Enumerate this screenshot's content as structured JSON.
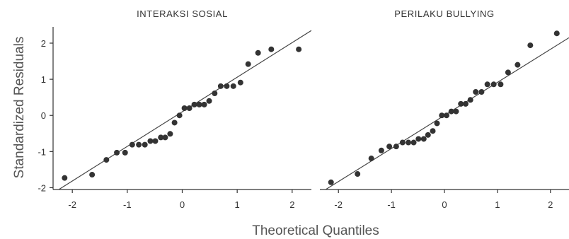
{
  "chart_data": {
    "type": "scatter",
    "xlabel": "Theoretical Quantiles",
    "ylabel": "Standardized Residuals",
    "xlim": [
      -2.35,
      2.35
    ],
    "ylim": [
      -2.05,
      2.45
    ],
    "x_ticks": [
      "-2",
      "-1",
      "0",
      "1",
      "2"
    ],
    "y_ticks": [
      "-2",
      "-1",
      "0",
      "1",
      "2"
    ],
    "panels": [
      {
        "title": "INTERAKSI SOSIAL",
        "reference_line": [
          [
            -2.35,
            -2.15
          ],
          [
            2.35,
            2.35
          ]
        ],
        "points": [
          [
            -2.14,
            -1.73
          ],
          [
            -1.64,
            -1.64
          ],
          [
            -1.38,
            -1.23
          ],
          [
            -1.19,
            -1.03
          ],
          [
            -1.04,
            -1.03
          ],
          [
            -0.91,
            -0.81
          ],
          [
            -0.79,
            -0.81
          ],
          [
            -0.68,
            -0.81
          ],
          [
            -0.58,
            -0.71
          ],
          [
            -0.49,
            -0.71
          ],
          [
            -0.39,
            -0.61
          ],
          [
            -0.31,
            -0.61
          ],
          [
            -0.22,
            -0.51
          ],
          [
            -0.14,
            -0.2
          ],
          [
            -0.05,
            0.0
          ],
          [
            0.04,
            0.2
          ],
          [
            0.13,
            0.2
          ],
          [
            0.22,
            0.3
          ],
          [
            0.31,
            0.3
          ],
          [
            0.4,
            0.3
          ],
          [
            0.49,
            0.4
          ],
          [
            0.59,
            0.61
          ],
          [
            0.7,
            0.81
          ],
          [
            0.81,
            0.81
          ],
          [
            0.93,
            0.81
          ],
          [
            1.06,
            0.91
          ],
          [
            1.2,
            1.42
          ],
          [
            1.38,
            1.73
          ],
          [
            1.62,
            1.83
          ],
          [
            2.12,
            1.83
          ]
        ]
      },
      {
        "title": "PERILAKU BULLYING",
        "reference_line": [
          [
            -2.35,
            -2.15
          ],
          [
            2.35,
            2.15
          ]
        ],
        "points": [
          [
            -2.14,
            -1.85
          ],
          [
            -1.64,
            -1.62
          ],
          [
            -1.38,
            -1.19
          ],
          [
            -1.19,
            -0.97
          ],
          [
            -1.04,
            -0.86
          ],
          [
            -0.91,
            -0.86
          ],
          [
            -0.79,
            -0.75
          ],
          [
            -0.68,
            -0.75
          ],
          [
            -0.58,
            -0.75
          ],
          [
            -0.49,
            -0.65
          ],
          [
            -0.39,
            -0.65
          ],
          [
            -0.31,
            -0.54
          ],
          [
            -0.22,
            -0.43
          ],
          [
            -0.14,
            -0.22
          ],
          [
            -0.05,
            0.0
          ],
          [
            0.04,
            0.0
          ],
          [
            0.13,
            0.11
          ],
          [
            0.22,
            0.11
          ],
          [
            0.31,
            0.32
          ],
          [
            0.4,
            0.32
          ],
          [
            0.49,
            0.43
          ],
          [
            0.59,
            0.65
          ],
          [
            0.7,
            0.65
          ],
          [
            0.81,
            0.86
          ],
          [
            0.93,
            0.86
          ],
          [
            1.06,
            0.86
          ],
          [
            1.2,
            1.19
          ],
          [
            1.38,
            1.4
          ],
          [
            1.62,
            1.94
          ],
          [
            2.12,
            2.27
          ]
        ]
      }
    ]
  }
}
